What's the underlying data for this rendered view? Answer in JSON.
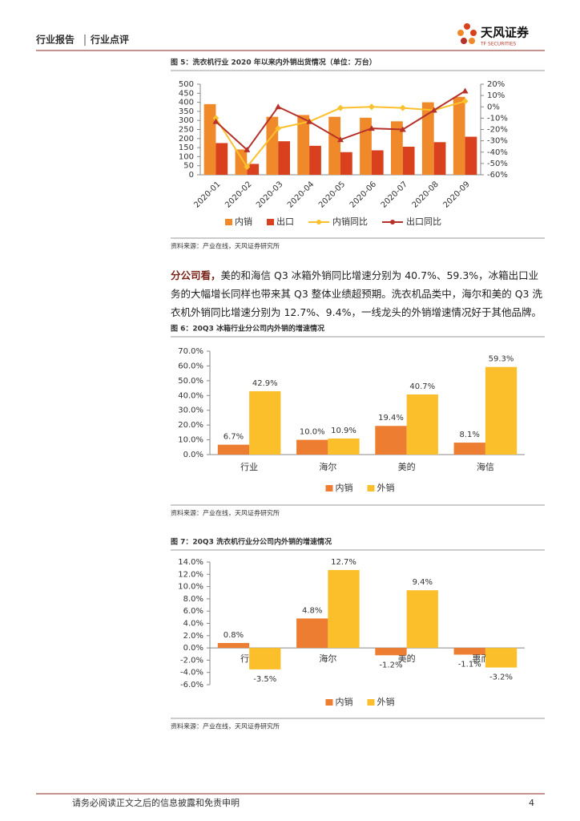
{
  "header": {
    "left": "行业报告",
    "right": "行业点评",
    "logo_cn": "天风证券",
    "logo_en": "TF SECURITIES"
  },
  "chart_data": [
    {
      "type": "bar",
      "title": "图 5：洗衣机行业 2020 年以来内外销出货情况（单位：万台）",
      "source": "资料来源：产业在线，天风证券研究所",
      "categories": [
        "2020-01",
        "2020-02",
        "2020-03",
        "2020-04",
        "2020-05",
        "2020-06",
        "2020-07",
        "2020-08",
        "2020-09"
      ],
      "series": [
        {
          "name": "内销",
          "color": "#f0892a",
          "values": [
            390,
            140,
            320,
            330,
            320,
            315,
            295,
            400,
            430
          ]
        },
        {
          "name": "出口",
          "color": "#d9411e",
          "values": [
            175,
            60,
            185,
            160,
            125,
            135,
            155,
            180,
            210
          ]
        },
        {
          "name": "内销同比",
          "color": "#fbc02d",
          "type": "line",
          "marker": "diamond",
          "axis": "y2",
          "values": [
            -10,
            -53,
            -19,
            -13,
            -1,
            0,
            -1,
            -3,
            5
          ]
        },
        {
          "name": "出口同比",
          "color": "#b5312a",
          "type": "line",
          "marker": "triangle",
          "axis": "y2",
          "values": [
            -13,
            -38,
            0,
            -13,
            -29,
            -19,
            -20,
            -3,
            14
          ]
        }
      ],
      "ylim": [
        0,
        500
      ],
      "yticks": [
        0,
        50,
        100,
        150,
        200,
        250,
        300,
        350,
        400,
        450,
        500
      ],
      "y2lim": [
        -60,
        20
      ],
      "y2ticks": [
        {
          "value": -60,
          "label": "-60%"
        },
        {
          "value": -50,
          "label": "-50%"
        },
        {
          "value": -40,
          "label": "-40%"
        },
        {
          "value": -30,
          "label": "-30%"
        },
        {
          "value": -20,
          "label": "-20%"
        },
        {
          "value": -10,
          "label": "-10%"
        },
        {
          "value": 0,
          "label": "0%"
        },
        {
          "value": 10,
          "label": "10%"
        },
        {
          "value": 20,
          "label": "20%"
        }
      ],
      "grid": false,
      "legend": "bottom"
    },
    {
      "type": "bar",
      "title": "图 6：20Q3 冰箱行业分公司内外销的增速情况",
      "source": "资料来源：产业在线，天风证券研究所",
      "categories": [
        "行业",
        "海尔",
        "美的",
        "海信"
      ],
      "series": [
        {
          "name": "内销",
          "color": "#ed7d31",
          "values": [
            6.7,
            10.0,
            19.4,
            8.1
          ],
          "value_labels": [
            "6.7%",
            "10.0%",
            "19.4%",
            "8.1%"
          ]
        },
        {
          "name": "外销",
          "color": "#fbbf2b",
          "values": [
            42.9,
            10.9,
            40.7,
            59.3
          ],
          "value_labels": [
            "42.9%",
            "10.9%",
            "40.7%",
            "59.3%"
          ]
        }
      ],
      "ylim": [
        0,
        70
      ],
      "yticks": [
        {
          "value": 0,
          "label": "0.0%"
        },
        {
          "value": 10,
          "label": "10.0%"
        },
        {
          "value": 20,
          "label": "20.0%"
        },
        {
          "value": 30,
          "label": "30.0%"
        },
        {
          "value": 40,
          "label": "40.0%"
        },
        {
          "value": 50,
          "label": "50.0%"
        },
        {
          "value": 60,
          "label": "60.0%"
        },
        {
          "value": 70,
          "label": "70.0%"
        }
      ],
      "grid": false,
      "legend": "bottom"
    },
    {
      "type": "bar",
      "title": "图 7：20Q3 洗衣机行业分公司内外销的增速情况",
      "source": "资料来源：产业在线，天风证券研究所",
      "categories": [
        "行业",
        "海尔",
        "美的",
        "惠而浦"
      ],
      "series": [
        {
          "name": "内销",
          "color": "#ed7d31",
          "values": [
            0.8,
            4.8,
            -1.2,
            -1.1
          ],
          "value_labels": [
            "0.8%",
            "4.8%",
            "-1.2%",
            "-1.1%"
          ]
        },
        {
          "name": "外销",
          "color": "#fbbf2b",
          "values": [
            -3.5,
            12.7,
            9.4,
            -3.2
          ],
          "value_labels": [
            "-3.5%",
            "12.7%",
            "9.4%",
            "-3.2%"
          ]
        }
      ],
      "ylim": [
        -6,
        14
      ],
      "yticks": [
        {
          "value": -6,
          "label": "-6.0%"
        },
        {
          "value": -4,
          "label": "-4.0%"
        },
        {
          "value": -2,
          "label": "-2.0%"
        },
        {
          "value": 0,
          "label": "0.0%"
        },
        {
          "value": 2,
          "label": "2.0%"
        },
        {
          "value": 4,
          "label": "4.0%"
        },
        {
          "value": 6,
          "label": "6.0%"
        },
        {
          "value": 8,
          "label": "8.0%"
        },
        {
          "value": 10,
          "label": "10.0%"
        },
        {
          "value": 12,
          "label": "12.0%"
        },
        {
          "value": 14,
          "label": "14.0%"
        }
      ],
      "grid": false,
      "legend": "bottom"
    }
  ],
  "body": {
    "lead": "分公司看，",
    "text": "美的和海信 Q3 冰箱外销同比增速分别为 40.7%、59.3%，冰箱出口业务的大幅增长同样也带来其 Q3 整体业绩超预期。洗衣机品类中，海尔和美的 Q3 洗衣机外销同比增速分别为 12.7%、9.4%，一线龙头的外销增速情况好于其他品牌。"
  },
  "footer": {
    "disclaimer": "请务必阅读正文之后的信息披露和免责申明",
    "page": "4"
  }
}
